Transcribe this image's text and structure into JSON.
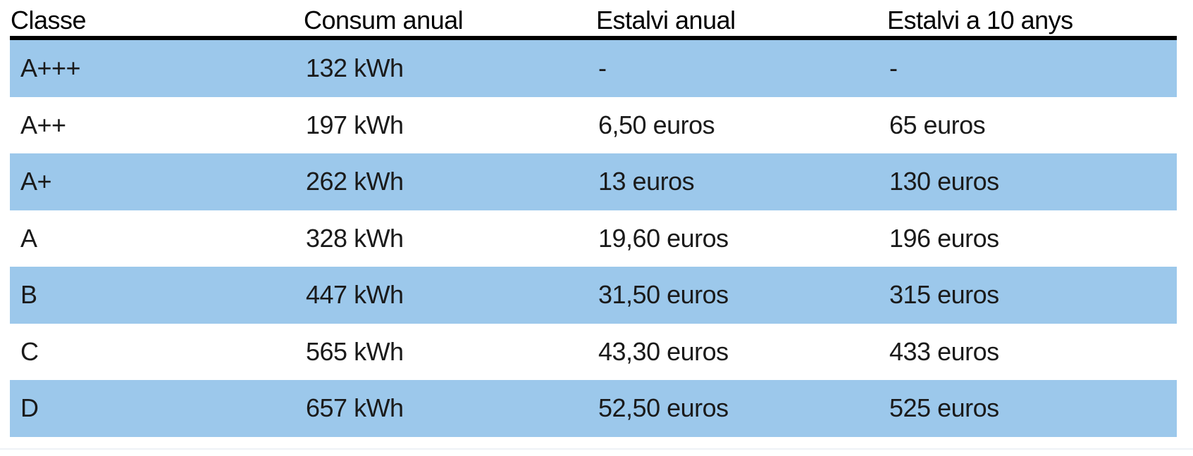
{
  "table": {
    "columns": [
      "Classe",
      "Consum anual",
      "Estalvi anual",
      "Estalvi a 10 anys"
    ],
    "rows": [
      [
        "A+++",
        "132 kWh",
        "-",
        "-"
      ],
      [
        "A++",
        "197 kWh",
        "6,50 euros",
        "65 euros"
      ],
      [
        "A+",
        "262 kWh",
        "13 euros",
        "130 euros"
      ],
      [
        "A",
        "328 kWh",
        "19,60 euros",
        "196 euros"
      ],
      [
        "B",
        "447 kWh",
        "31,50 euros",
        "315 euros"
      ],
      [
        "C",
        "565 kWh",
        "43,30 euros",
        "433 euros"
      ],
      [
        "D",
        "657 kWh",
        "52,50 euros",
        "525 euros"
      ]
    ]
  },
  "colors": {
    "band_blue": "#9CC8EB",
    "header_rule": "#000000",
    "text": "#1a1a1a"
  },
  "chart_data": {
    "type": "table",
    "title": "",
    "columns": [
      "Classe",
      "Consum anual",
      "Estalvi anual",
      "Estalvi a 10 anys"
    ],
    "rows": [
      {
        "classe": "A+++",
        "consum_anual_kwh": 132,
        "estalvi_anual_euros": null,
        "estalvi_10_anys_euros": null
      },
      {
        "classe": "A++",
        "consum_anual_kwh": 197,
        "estalvi_anual_euros": 6.5,
        "estalvi_10_anys_euros": 65
      },
      {
        "classe": "A+",
        "consum_anual_kwh": 262,
        "estalvi_anual_euros": 13,
        "estalvi_10_anys_euros": 130
      },
      {
        "classe": "A",
        "consum_anual_kwh": 328,
        "estalvi_anual_euros": 19.6,
        "estalvi_10_anys_euros": 196
      },
      {
        "classe": "B",
        "consum_anual_kwh": 447,
        "estalvi_anual_euros": 31.5,
        "estalvi_10_anys_euros": 315
      },
      {
        "classe": "C",
        "consum_anual_kwh": 565,
        "estalvi_anual_euros": 43.3,
        "estalvi_10_anys_euros": 433
      },
      {
        "classe": "D",
        "consum_anual_kwh": 657,
        "estalvi_anual_euros": 52.5,
        "estalvi_10_anys_euros": 525
      }
    ],
    "layout": {
      "banded_rows": true,
      "band_color": "#9CC8EB",
      "header_rule_color": "#000000"
    }
  }
}
